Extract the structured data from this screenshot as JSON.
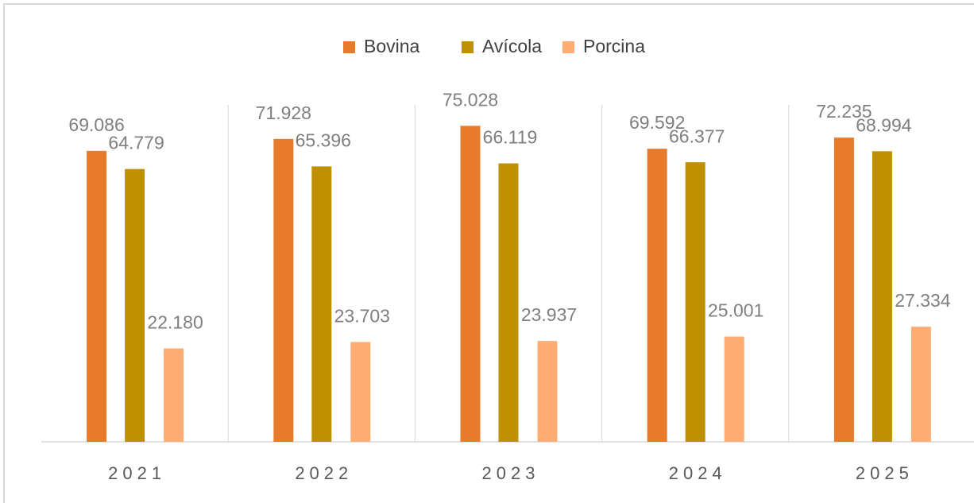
{
  "chart_data": {
    "type": "bar",
    "categories": [
      "2021",
      "2022",
      "2023",
      "2024",
      "2025"
    ],
    "series": [
      {
        "name": "Bovina",
        "color": "#e87a2c",
        "values": [
          69086,
          71928,
          75028,
          69592,
          72235
        ],
        "value_labels": [
          "69.086",
          "71.928",
          "75.028",
          "69.592",
          "72.235"
        ]
      },
      {
        "name": "Avícola",
        "color": "#bf9000",
        "values": [
          64779,
          65396,
          66119,
          66377,
          68994
        ],
        "value_labels": [
          "64.779",
          "65.396",
          "66.119",
          "66.377",
          "68.994"
        ]
      },
      {
        "name": "Porcina",
        "color": "#ffad72",
        "values": [
          22180,
          23703,
          23937,
          25001,
          27334
        ],
        "value_labels": [
          "22.180",
          "23.703",
          "23.937",
          "25.001",
          "27.334"
        ]
      }
    ],
    "ylim": [
      0,
      80000
    ],
    "legend": "top"
  }
}
